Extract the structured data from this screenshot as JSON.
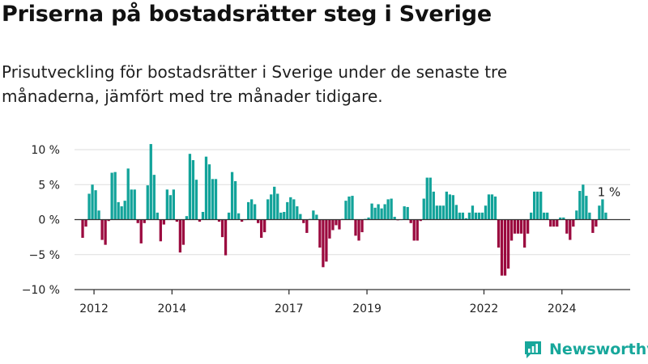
{
  "header": {
    "title": "Priserna på bostadsrätter steg i Sverige",
    "subtitle": "Prisutveckling för bostadsrätter i Sverige under de senaste tre månaderna, jämfört med tre månader tidigare."
  },
  "brand": {
    "name": "Newsworthy",
    "icon": "newsworthy-logo-icon",
    "color": "#17a79b"
  },
  "colors": {
    "positive": "#12a39a",
    "negative": "#9b0a3f",
    "grid": "#dddddd",
    "axis": "#333333"
  },
  "chart_data": {
    "type": "bar",
    "title": "",
    "xlabel": "",
    "ylabel": "",
    "ylim": [
      -10,
      10
    ],
    "y_ticks": [
      10,
      5,
      0,
      -5,
      -10
    ],
    "y_tick_labels": [
      "10 %",
      "5 %",
      "0 %",
      "−5 %",
      "−10 %"
    ],
    "grid": true,
    "x_tick_labels": [
      "2012",
      "2014",
      "2017",
      "2019",
      "2022",
      "2024"
    ],
    "x_tick_positions": [
      "2012-01",
      "2014-01",
      "2017-01",
      "2019-01",
      "2022-01",
      "2024-01"
    ],
    "x_range": [
      "2011-07",
      "2025-10"
    ],
    "start_month": "2011-09",
    "unit": "%",
    "annotation": {
      "text": "1 %",
      "month": "2025-03"
    },
    "values": [
      -2.6,
      -1.0,
      3.7,
      5.0,
      4.2,
      1.3,
      -2.9,
      -3.6,
      -0.2,
      6.7,
      6.8,
      2.5,
      1.9,
      2.7,
      7.3,
      4.3,
      4.3,
      -0.5,
      -3.4,
      -0.5,
      4.9,
      10.8,
      6.4,
      1.0,
      -3.1,
      -0.7,
      4.3,
      3.5,
      4.3,
      -0.3,
      -4.7,
      -3.6,
      0.5,
      9.4,
      8.5,
      5.7,
      -0.3,
      1.1,
      9.0,
      7.9,
      5.8,
      5.8,
      -0.3,
      -2.5,
      -5.1,
      1.0,
      6.8,
      5.5,
      0.9,
      -0.3,
      0.0,
      2.5,
      2.9,
      2.2,
      -0.5,
      -2.6,
      -1.8,
      2.9,
      3.6,
      4.7,
      3.7,
      1.0,
      1.1,
      2.5,
      3.2,
      2.9,
      1.9,
      0.8,
      -0.5,
      -1.9,
      0.1,
      1.3,
      0.7,
      -4.0,
      -6.8,
      -6.0,
      -2.7,
      -1.5,
      -0.8,
      -1.4,
      0.1,
      2.7,
      3.3,
      3.4,
      -2.3,
      -3.0,
      -1.8,
      0.1,
      0.3,
      2.3,
      1.7,
      2.2,
      1.6,
      2.2,
      2.9,
      3.0,
      0.4,
      -0.1,
      0.0,
      1.9,
      1.8,
      -0.5,
      -3.0,
      -3.0,
      -0.2,
      3.0,
      6.0,
      6.0,
      4.0,
      2.0,
      2.0,
      2.0,
      4.0,
      3.6,
      3.5,
      2.1,
      1.0,
      1.0,
      0.2,
      1.0,
      2.0,
      1.0,
      1.0,
      1.0,
      2.0,
      3.6,
      3.6,
      3.3,
      -4.0,
      -8.0,
      -8.0,
      -7.0,
      -3.0,
      -2.0,
      -2.0,
      -2.0,
      -4.0,
      -2.0,
      1.0,
      4.0,
      4.0,
      4.0,
      1.0,
      1.0,
      -1.0,
      -1.0,
      -1.0,
      0.3,
      0.3,
      -2.0,
      -2.9,
      -1.0,
      1.3,
      4.1,
      5.0,
      3.4,
      1.0,
      -1.9,
      -1.0,
      2.0,
      2.9,
      1.0
    ]
  }
}
